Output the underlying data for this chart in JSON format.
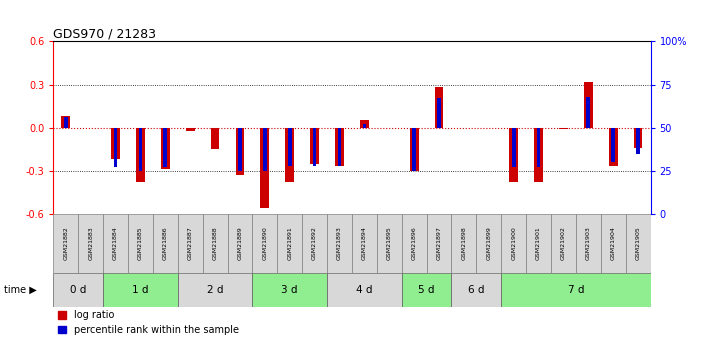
{
  "title": "GDS970 / 21283",
  "samples": [
    "GSM21882",
    "GSM21883",
    "GSM21884",
    "GSM21885",
    "GSM21886",
    "GSM21887",
    "GSM21888",
    "GSM21889",
    "GSM21890",
    "GSM21891",
    "GSM21892",
    "GSM21893",
    "GSM21894",
    "GSM21895",
    "GSM21896",
    "GSM21897",
    "GSM21898",
    "GSM21899",
    "GSM21900",
    "GSM21901",
    "GSM21902",
    "GSM21903",
    "GSM21904",
    "GSM21905"
  ],
  "log_ratio": [
    0.08,
    0.0,
    -0.22,
    -0.38,
    -0.29,
    -0.02,
    -0.15,
    -0.33,
    -0.56,
    -0.38,
    -0.25,
    -0.27,
    0.05,
    0.0,
    -0.3,
    0.28,
    0.0,
    0.0,
    -0.38,
    -0.38,
    -0.01,
    0.32,
    -0.27,
    -0.14
  ],
  "percentile": [
    56,
    50,
    27,
    25,
    27,
    50,
    50,
    25,
    25,
    28,
    28,
    28,
    52,
    50,
    25,
    67,
    50,
    50,
    27,
    27,
    50,
    68,
    30,
    35
  ],
  "time_groups": [
    {
      "label": "0 d",
      "start": 0,
      "end": 2,
      "color": "#d8d8d8"
    },
    {
      "label": "1 d",
      "start": 2,
      "end": 5,
      "color": "#90ee90"
    },
    {
      "label": "2 d",
      "start": 5,
      "end": 8,
      "color": "#d8d8d8"
    },
    {
      "label": "3 d",
      "start": 8,
      "end": 11,
      "color": "#90ee90"
    },
    {
      "label": "4 d",
      "start": 11,
      "end": 14,
      "color": "#d8d8d8"
    },
    {
      "label": "5 d",
      "start": 14,
      "end": 16,
      "color": "#90ee90"
    },
    {
      "label": "6 d",
      "start": 16,
      "end": 18,
      "color": "#d8d8d8"
    },
    {
      "label": "7 d",
      "start": 18,
      "end": 24,
      "color": "#90ee90"
    }
  ],
  "ylim": [
    -0.6,
    0.6
  ],
  "yticks_left": [
    -0.6,
    -0.3,
    0.0,
    0.3,
    0.6
  ],
  "yticks_right": [
    0,
    25,
    50,
    75,
    100
  ],
  "bar_color_red": "#cc0000",
  "bar_color_blue": "#0000cc",
  "zero_line_color": "#cc0000",
  "grid_color": "#000000",
  "background_color": "#ffffff",
  "bar_width": 0.35,
  "percentile_bar_width": 0.15,
  "sample_cell_color": "#d8d8d8",
  "sample_cell_border": "#808080"
}
